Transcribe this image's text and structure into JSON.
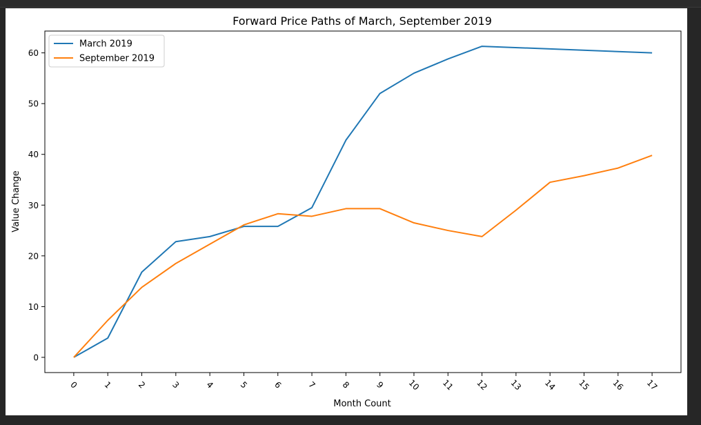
{
  "chart_data": {
    "type": "line",
    "title": "Forward Price Paths of March, September 2019",
    "xlabel": "Month Count",
    "ylabel": "Value Change",
    "x": [
      0,
      1,
      2,
      3,
      4,
      5,
      6,
      7,
      8,
      9,
      10,
      11,
      12,
      13,
      14,
      15,
      16,
      17
    ],
    "xticks": [
      "0",
      "1",
      "2",
      "3",
      "4",
      "5",
      "6",
      "7",
      "8",
      "9",
      "10",
      "11",
      "12",
      "13",
      "14",
      "15",
      "16",
      "17"
    ],
    "yticks": [
      "0",
      "10",
      "20",
      "30",
      "40",
      "50",
      "60"
    ],
    "xlim": [
      -0.85,
      17.85
    ],
    "ylim": [
      -3.0,
      64.3
    ],
    "legend_position": "upper-left",
    "grid": false,
    "series": [
      {
        "name": "March 2019",
        "color": "#1f77b4",
        "x": [
          0,
          1,
          2,
          3,
          4,
          5,
          6,
          7,
          8,
          9,
          10,
          11,
          12,
          17
        ],
        "values": [
          0,
          3.8,
          16.8,
          22.8,
          23.8,
          25.8,
          25.8,
          29.5,
          42.8,
          52.0,
          56.0,
          58.8,
          61.3,
          60.0
        ]
      },
      {
        "name": "September 2019",
        "color": "#ff7f0e",
        "x": [
          0,
          1,
          2,
          3,
          4,
          5,
          6,
          7,
          8,
          9,
          10,
          11,
          12,
          13,
          14,
          15,
          16,
          17
        ],
        "values": [
          0,
          7.3,
          13.8,
          18.5,
          22.3,
          26.1,
          28.3,
          27.8,
          29.3,
          29.3,
          26.5,
          25.0,
          23.8,
          29.0,
          34.5,
          35.8,
          37.3,
          39.8
        ]
      }
    ]
  }
}
